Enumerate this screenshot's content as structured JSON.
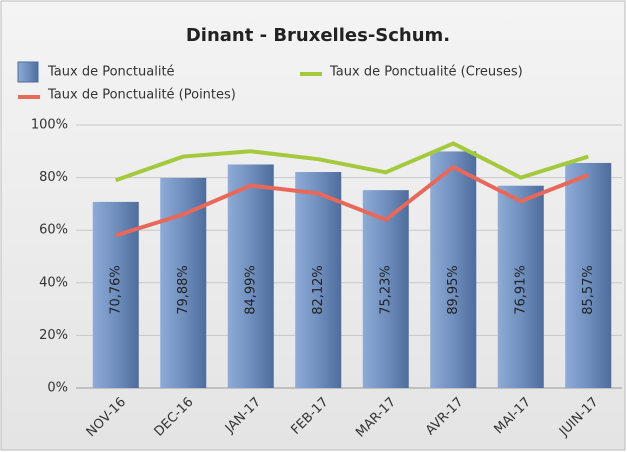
{
  "chart_data": {
    "type": "bar",
    "title": "Dinant - Bruxelles-Schum.",
    "categories": [
      "NOV-16",
      "DEC-16",
      "JAN-17",
      "FEB-17",
      "MAR-17",
      "AVR-17",
      "MAI-17",
      "JUIN-17"
    ],
    "series": [
      {
        "name": "Taux de Ponctualité",
        "type": "bar",
        "color": "#6f8fbf",
        "values": [
          70.76,
          79.88,
          84.99,
          82.12,
          75.23,
          89.95,
          76.91,
          85.57
        ],
        "value_labels": [
          "70,76%",
          "79,88%",
          "84,99%",
          "82,12%",
          "75,23%",
          "89,95%",
          "76,91%",
          "85,57%"
        ]
      },
      {
        "name": "Taux de Ponctualité (Creuses)",
        "type": "line",
        "color": "#a4c93c",
        "values": [
          79,
          88,
          90,
          87,
          82,
          93,
          80,
          88
        ]
      },
      {
        "name": "Taux de Ponctualité (Pointes)",
        "type": "line",
        "color": "#e8685a",
        "values": [
          58,
          66,
          77,
          74,
          64,
          84,
          71,
          81
        ]
      }
    ],
    "ylim": [
      0,
      100
    ],
    "yticks": [
      {
        "value": 0,
        "label": "0%"
      },
      {
        "value": 20,
        "label": "20%"
      },
      {
        "value": 40,
        "label": "40%"
      },
      {
        "value": 60,
        "label": "60%"
      },
      {
        "value": 80,
        "label": "80%"
      },
      {
        "value": 100,
        "label": "100%"
      }
    ],
    "grid": true
  }
}
